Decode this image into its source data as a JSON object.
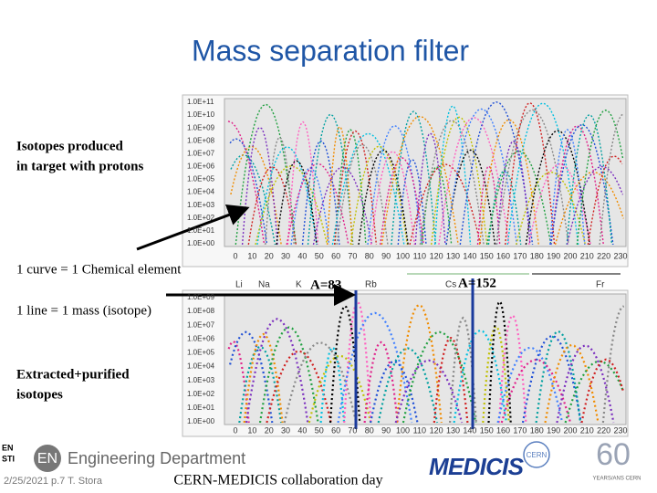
{
  "title": "Mass separation filter",
  "annotations": {
    "produced": [
      "Isotopes produced",
      "in target with protons"
    ],
    "curve": "1 curve = 1 Chemical element",
    "line": "1 line = 1 mass (isotope)",
    "extracted": [
      "Extracted+purified",
      "isotopes"
    ],
    "mass_a": "A=83",
    "mass_b": "A=152"
  },
  "top_chart": {
    "yticks": [
      "1.0E+11",
      "1.0E+10",
      "1.0E+09",
      "1.0E+08",
      "1.0E+07",
      "1.0E+06",
      "1.0E+05",
      "1.0E+04",
      "1.0E+03",
      "1.0E+02",
      "1.0E+01",
      "1.0E+00"
    ],
    "xticks": [
      0,
      10,
      20,
      30,
      40,
      50,
      60,
      70,
      80,
      90,
      100,
      110,
      120,
      130,
      140,
      150,
      160,
      170,
      180,
      190,
      200,
      210,
      220,
      230
    ]
  },
  "bottom_chart": {
    "elements": [
      "Li",
      "Na",
      "K",
      "Rb",
      "Cs",
      "Fr"
    ],
    "yticks": [
      "1.0E+09",
      "1.0E+08",
      "1.0E+07",
      "1.0E+06",
      "1.0E+05",
      "1.0E+04",
      "1.0E+03",
      "1.0E+02",
      "1.0E+01",
      "1.0E+00"
    ],
    "xticks": [
      0,
      10,
      20,
      30,
      40,
      50,
      60,
      70,
      80,
      90,
      100,
      110,
      120,
      130,
      140,
      150,
      160,
      170,
      180,
      190,
      200,
      210,
      220,
      230
    ]
  },
  "footer": {
    "unit_small": [
      "EN",
      "STI"
    ],
    "unit_logo": "EN",
    "department": "Engineering Department",
    "date": "2/25/2021 p.7 T. Stora",
    "event": "CERN-MEDICIS collaboration day",
    "medicis": "MEDICIS",
    "cern": "CERN",
    "anniversary": "60",
    "anniversary_caption": "YEARS/ANS CERN"
  }
}
